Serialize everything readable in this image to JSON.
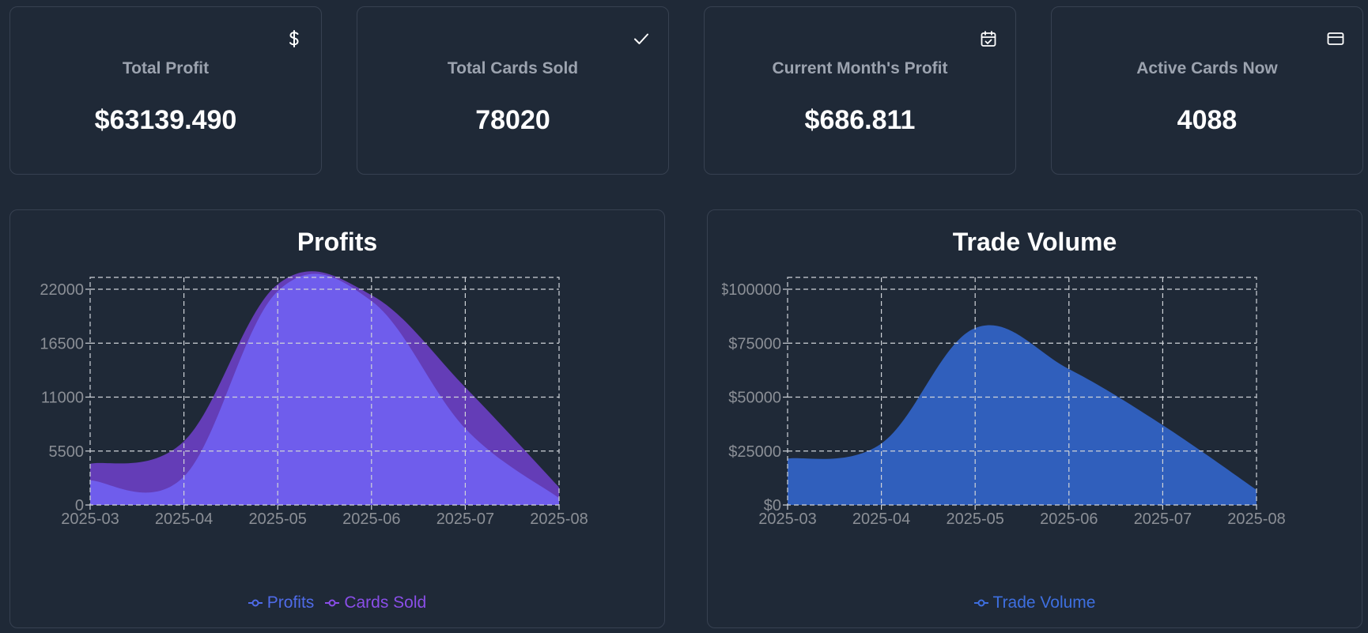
{
  "stats": [
    {
      "label": "Total Profit",
      "value": "$63139.490",
      "icon": "dollar-icon"
    },
    {
      "label": "Total Cards Sold",
      "value": "78020",
      "icon": "check-icon"
    },
    {
      "label": "Current Month's Profit",
      "value": "$686.811",
      "icon": "calendar-check-icon"
    },
    {
      "label": "Active Cards Now",
      "value": "4088",
      "icon": "credit-card-icon"
    }
  ],
  "profits_chart": {
    "title": "Profits",
    "legend": [
      "Profits",
      "Cards Sold"
    ]
  },
  "volume_chart": {
    "title": "Trade Volume",
    "legend": [
      "Trade Volume"
    ]
  },
  "colors": {
    "profits": "#7060f0",
    "cards_sold": "#6a3fc2",
    "volume": "#3264c8",
    "legend_profits": "#4f6be8",
    "legend_cards": "#8a4ee8",
    "legend_volume": "#3e6fe0"
  },
  "chart_data": [
    {
      "type": "area",
      "title": "Profits",
      "x": [
        "2025-03",
        "2025-04",
        "2025-05",
        "2025-06",
        "2025-07",
        "2025-08"
      ],
      "yticks": [
        "0",
        "5500",
        "11000",
        "16500",
        "22000"
      ],
      "ylim": [
        0,
        22000
      ],
      "grid": true,
      "legend": "bottom",
      "series": [
        {
          "name": "Cards Sold",
          "values": [
            4200,
            6500,
            22500,
            21400,
            12000,
            1800
          ]
        },
        {
          "name": "Profits",
          "values": [
            2500,
            2900,
            21800,
            20800,
            7800,
            700
          ]
        }
      ]
    },
    {
      "type": "area",
      "title": "Trade Volume",
      "x": [
        "2025-03",
        "2025-04",
        "2025-05",
        "2025-06",
        "2025-07",
        "2025-08"
      ],
      "yticks": [
        "$0",
        "$25000",
        "$50000",
        "$75000",
        "$100000"
      ],
      "ylim": [
        0,
        100000
      ],
      "grid": true,
      "legend": "bottom",
      "series": [
        {
          "name": "Trade Volume",
          "values": [
            21500,
            28500,
            82000,
            63000,
            37000,
            7000
          ]
        }
      ]
    }
  ]
}
